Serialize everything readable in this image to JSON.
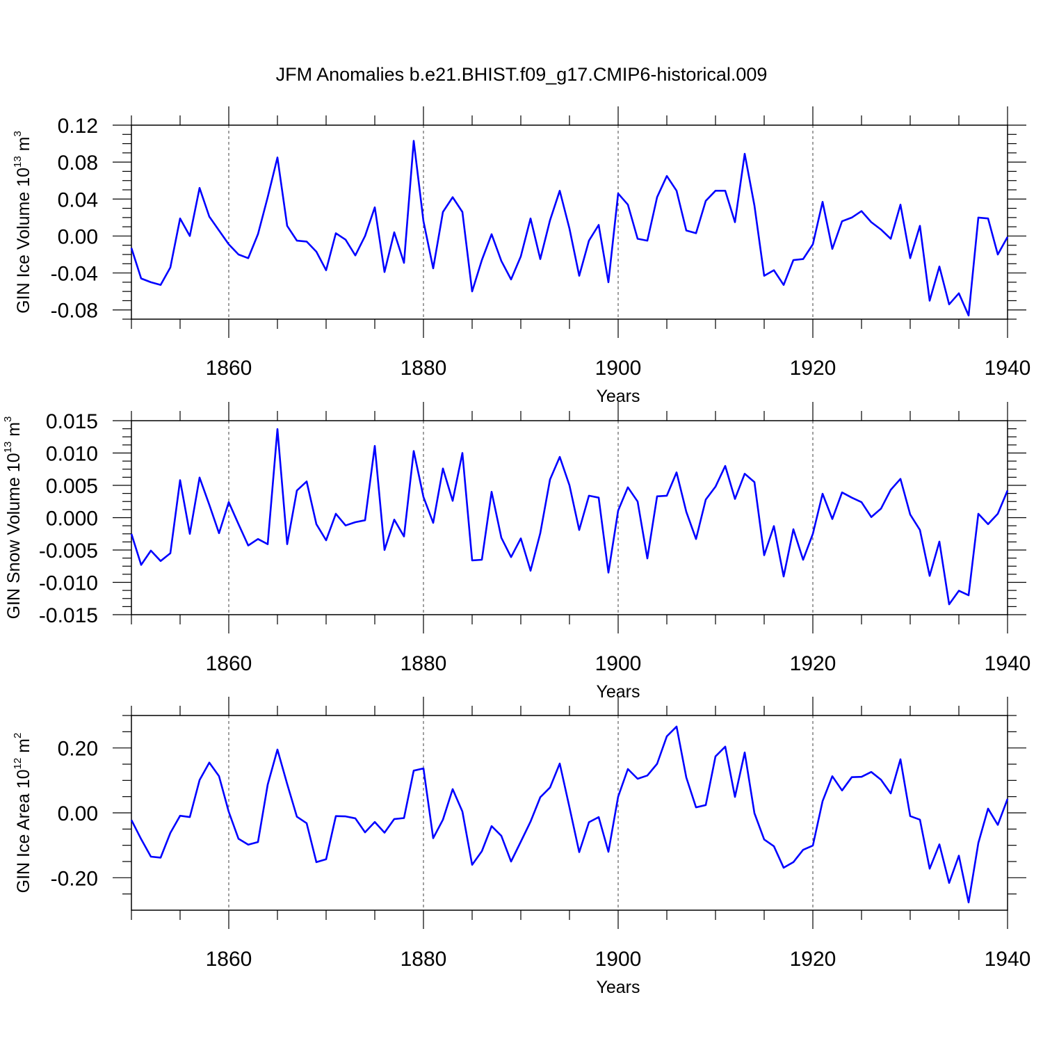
{
  "chart_data": [
    {
      "type": "line",
      "title": "JFM Anomalies b.e21.BHIST.f09_g17.CMIP6-historical.009",
      "xlabel": "Years",
      "ylabel": "GIN Ice Volume 10",
      "ylabel_exp": "13",
      "ylabel_unit": " m",
      "ylabel_unit_exp": "3",
      "xlim": [
        1850,
        1940
      ],
      "ylim": [
        -0.09,
        0.12
      ],
      "xticks": [
        1860,
        1880,
        1900,
        1920,
        1940
      ],
      "yticks": [
        0.12,
        0.08,
        0.04,
        0.0,
        -0.04,
        -0.08
      ],
      "ytick_labels": [
        "0.12",
        "0.08",
        "0.04",
        "0.00",
        "-0.04",
        "-0.08"
      ],
      "line_color": "#0000ff",
      "x_start": 1850,
      "values": [
        -0.013,
        -0.046,
        -0.05,
        -0.053,
        -0.034,
        0.019,
        0.0,
        0.052,
        0.021,
        0.006,
        -0.009,
        -0.02,
        -0.024,
        0.002,
        0.042,
        0.085,
        0.011,
        -0.005,
        -0.006,
        -0.017,
        -0.037,
        0.003,
        -0.004,
        -0.021,
        0.0,
        0.031,
        -0.039,
        0.004,
        -0.029,
        0.103,
        0.016,
        -0.035,
        0.026,
        0.042,
        0.026,
        -0.06,
        -0.026,
        0.002,
        -0.027,
        -0.047,
        -0.022,
        0.019,
        -0.025,
        0.017,
        0.049,
        0.008,
        -0.043,
        -0.005,
        0.012,
        -0.05,
        0.046,
        0.034,
        -0.003,
        -0.005,
        0.042,
        0.065,
        0.049,
        0.006,
        0.003,
        0.038,
        0.049,
        0.049,
        0.015,
        0.089,
        0.033,
        -0.043,
        -0.037,
        -0.053,
        -0.026,
        -0.025,
        -0.009,
        0.037,
        -0.014,
        0.016,
        0.02,
        0.027,
        0.015,
        0.007,
        -0.003,
        0.034,
        -0.024,
        0.011,
        -0.07,
        -0.033,
        -0.074,
        -0.062,
        -0.086,
        0.02,
        0.019,
        -0.02,
        -0.001
      ]
    },
    {
      "type": "line",
      "xlabel": "Years",
      "ylabel": "GIN Snow Volume 10",
      "ylabel_exp": "13",
      "ylabel_unit": " m",
      "ylabel_unit_exp": "3",
      "xlim": [
        1850,
        1940
      ],
      "ylim": [
        -0.015,
        0.015
      ],
      "xticks": [
        1860,
        1880,
        1900,
        1920,
        1940
      ],
      "yticks": [
        0.015,
        0.01,
        0.005,
        0.0,
        -0.005,
        -0.01,
        -0.015
      ],
      "ytick_labels": [
        "0.015",
        "0.010",
        "0.005",
        "0.000",
        "-0.005",
        "-0.010",
        "-0.015"
      ],
      "line_color": "#0000ff",
      "x_start": 1850,
      "values": [
        -0.0025,
        -0.0073,
        -0.0051,
        -0.0067,
        -0.0055,
        0.0058,
        -0.0025,
        0.0062,
        0.002,
        -0.0024,
        0.0024,
        -0.001,
        -0.0043,
        -0.0033,
        -0.0041,
        0.0137,
        -0.0041,
        0.0042,
        0.0056,
        -0.001,
        -0.0035,
        0.0006,
        -0.0012,
        -0.0007,
        -0.0004,
        0.0111,
        -0.005,
        -0.0003,
        -0.0029,
        0.0103,
        0.0032,
        -0.0008,
        0.0076,
        0.0026,
        0.01,
        -0.0066,
        -0.0065,
        0.004,
        -0.0031,
        -0.0061,
        -0.0032,
        -0.0082,
        -0.0024,
        0.0059,
        0.0094,
        0.005,
        -0.0019,
        0.0034,
        0.0031,
        -0.0085,
        0.0011,
        0.0047,
        0.0025,
        -0.0063,
        0.0033,
        0.0034,
        0.007,
        0.0009,
        -0.0033,
        0.0028,
        0.0048,
        0.008,
        0.0029,
        0.0068,
        0.0055,
        -0.0058,
        -0.0013,
        -0.0091,
        -0.0018,
        -0.0065,
        -0.0025,
        0.0037,
        -0.0002,
        0.0039,
        0.0031,
        0.0024,
        0.0001,
        0.0014,
        0.0043,
        0.006,
        0.0005,
        -0.0019,
        -0.009,
        -0.0037,
        -0.0134,
        -0.0113,
        -0.012,
        0.0006,
        -0.001,
        0.0006,
        0.0042
      ]
    },
    {
      "type": "line",
      "xlabel": "Years",
      "ylabel": "GIN Ice Area 10",
      "ylabel_exp": "12",
      "ylabel_unit": " m",
      "ylabel_unit_exp": "2",
      "xlim": [
        1850,
        1940
      ],
      "ylim": [
        -0.3,
        0.3
      ],
      "xticks": [
        1860,
        1880,
        1900,
        1920,
        1940
      ],
      "yticks": [
        0.2,
        0.0,
        -0.2
      ],
      "ytick_labels": [
        "0.20",
        "0.00",
        "-0.20"
      ],
      "line_color": "#0000ff",
      "x_start": 1850,
      "values": [
        -0.022,
        -0.081,
        -0.135,
        -0.138,
        -0.062,
        -0.009,
        -0.013,
        0.101,
        0.155,
        0.113,
        0.003,
        -0.08,
        -0.098,
        -0.09,
        0.087,
        0.195,
        0.089,
        -0.012,
        -0.032,
        -0.152,
        -0.143,
        -0.01,
        -0.011,
        -0.017,
        -0.06,
        -0.028,
        -0.061,
        -0.019,
        -0.016,
        0.13,
        0.137,
        -0.078,
        -0.021,
        0.073,
        0.004,
        -0.16,
        -0.118,
        -0.041,
        -0.071,
        -0.15,
        -0.089,
        -0.027,
        0.048,
        0.078,
        0.152,
        0.017,
        -0.121,
        -0.029,
        -0.013,
        -0.12,
        0.05,
        0.135,
        0.105,
        0.115,
        0.151,
        0.236,
        0.266,
        0.109,
        0.017,
        0.024,
        0.174,
        0.204,
        0.049,
        0.186,
        -0.001,
        -0.082,
        -0.103,
        -0.169,
        -0.152,
        -0.114,
        -0.101,
        0.036,
        0.113,
        0.069,
        0.11,
        0.111,
        0.126,
        0.102,
        0.06,
        0.165,
        -0.01,
        -0.021,
        -0.172,
        -0.097,
        -0.216,
        -0.132,
        -0.276,
        -0.093,
        0.013,
        -0.037,
        0.043
      ]
    }
  ]
}
